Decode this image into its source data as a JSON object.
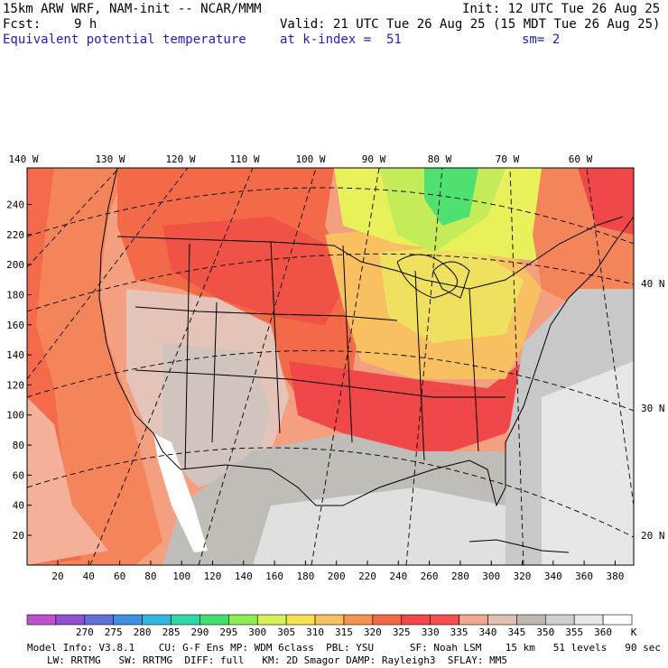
{
  "header": {
    "title": "15km ARW WRF, NAM-init -- NCAR/MMM",
    "fcst_label": "Fcst:",
    "fcst_value": "9 h",
    "field": "Equivalent potential temperature",
    "init": "Init: 12 UTC Tue 26 Aug 25",
    "valid": "Valid: 21 UTC Tue 26 Aug 25 (15 MDT Tue 26 Aug 25)",
    "level": "at k-index =  51",
    "smooth": "sm= 2"
  },
  "map": {
    "top_lon_labels": [
      "140 W",
      "130 W",
      "120 W",
      "110 W",
      "100 W",
      "90 W",
      "80 W",
      "70 W",
      "60 W"
    ],
    "left_grid_labels": [
      "240",
      "220",
      "200",
      "180",
      "160",
      "140",
      "120",
      "100",
      "80",
      "60",
      "40",
      "20"
    ],
    "bottom_grid_labels": [
      "20",
      "40",
      "60",
      "80",
      "100",
      "120",
      "140",
      "160",
      "180",
      "200",
      "220",
      "240",
      "260",
      "280",
      "300",
      "320",
      "340",
      "360",
      "380"
    ],
    "right_lat_labels": [
      "40 N",
      "30 N",
      "20 N"
    ]
  },
  "colorbar": {
    "levels": [
      "270",
      "275",
      "280",
      "285",
      "290",
      "295",
      "300",
      "305",
      "310",
      "315",
      "320",
      "325",
      "330",
      "335",
      "340",
      "345",
      "350",
      "355",
      "360"
    ],
    "unit": "K",
    "colors": [
      "#c050d0",
      "#9050d0",
      "#6070d8",
      "#4090e0",
      "#30b8e0",
      "#30d8a8",
      "#40e070",
      "#90ec50",
      "#d8f058",
      "#f4e050",
      "#f8c060",
      "#f49450",
      "#f06a48",
      "#f04848",
      "#f45050",
      "#f0a890",
      "#e0c0b0",
      "#c0b8b0",
      "#d0d0d0",
      "#e8e8e8",
      "#ffffff"
    ]
  },
  "footer": {
    "line1": "Model Info: V3.8.1    CU: G-F Ens MP: WDM 6class  PBL: YSU      SF: Noah LSM    15 km   51 levels   90 sec",
    "line2": "LW: RRTMG   SW: RRTMG  DIFF: full   KM: 2D Smagor DAMP: Rayleigh3  SFLAY: MM5"
  },
  "palette": {
    "state_lines": "#000000",
    "graticule": "#000000"
  }
}
